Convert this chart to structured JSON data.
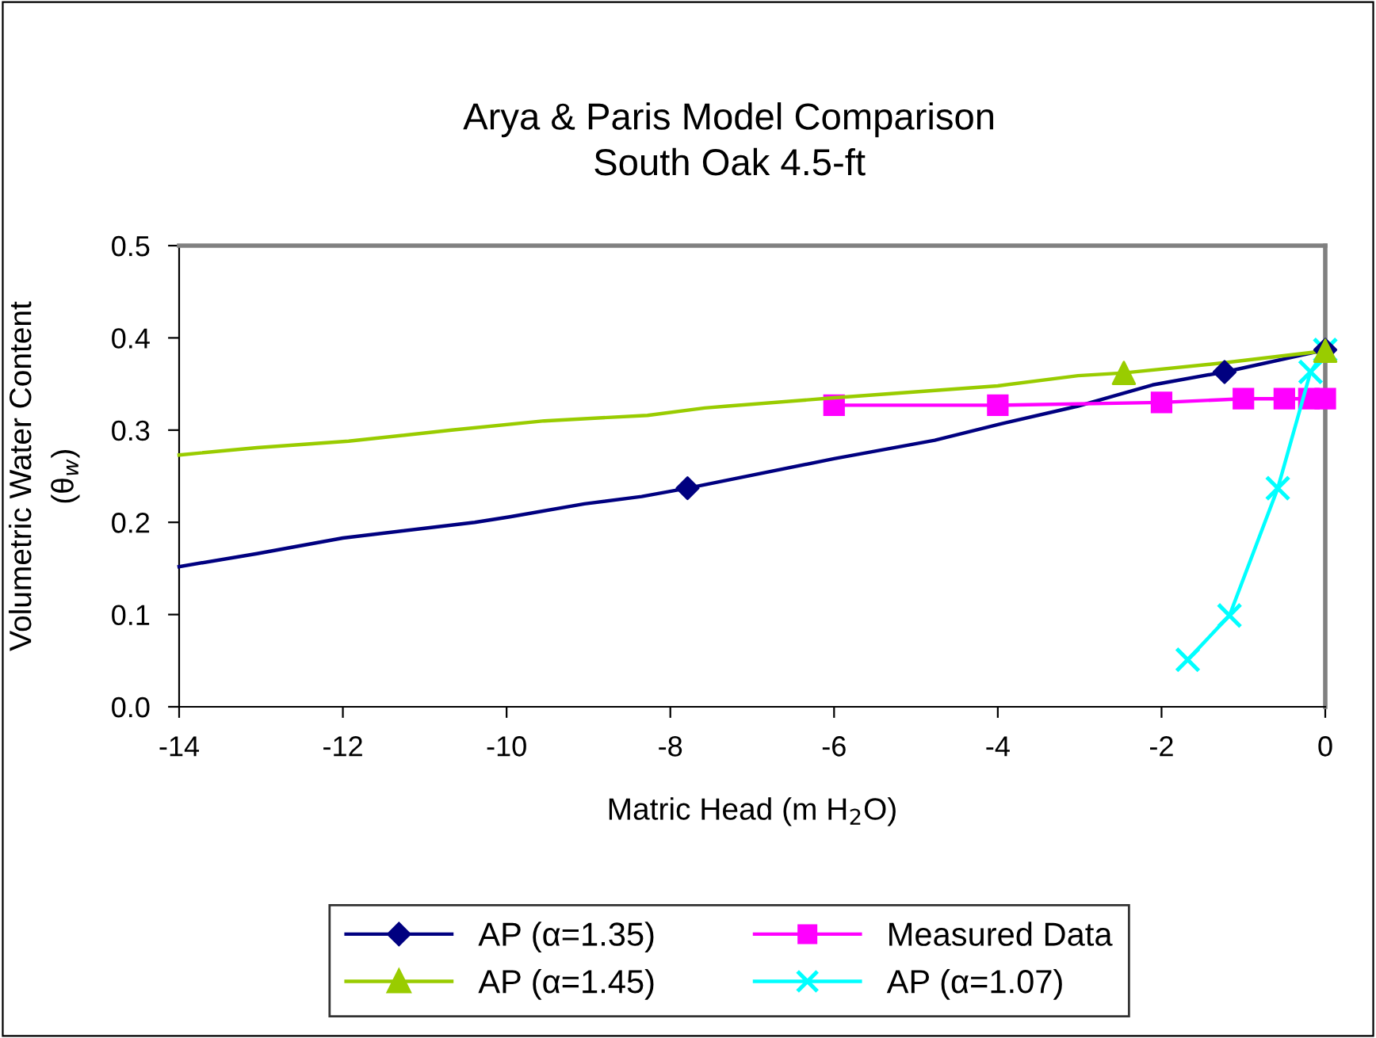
{
  "chart_data": {
    "type": "line",
    "title": "Arya & Paris Model Comparison\nSouth Oak 4.5-ft",
    "xlabel": "Matric Head (m H$_{2}$O)",
    "ylabel": "Volumetric Water Content\n(θ$_{w}$)",
    "xlim": [
      -14,
      0
    ],
    "xticks": [
      {
        "value": -14,
        "label": "-14"
      },
      {
        "value": -12,
        "label": "-12"
      },
      {
        "value": -10,
        "label": "-10"
      },
      {
        "value": -8,
        "label": "-8"
      },
      {
        "value": -6,
        "label": "-6"
      },
      {
        "value": -4,
        "label": "-4"
      },
      {
        "value": -2,
        "label": "-2"
      },
      0
    ],
    "ylim": [
      0,
      0.5
    ],
    "yticks": [
      {
        "value": 0,
        "label": "0.0"
      },
      0.1,
      0.2,
      0.3,
      0.4,
      0.5
    ],
    "grid": false,
    "legend": "bottom",
    "series": [
      {
        "color": "#000080",
        "marker": "none",
        "x": [
          -14,
          -13.05,
          -12,
          -10.39,
          -9.96,
          -9.05,
          -8.35,
          -7.79,
          -6,
          -4.77,
          -4,
          -3.02,
          -2.11,
          -1.23,
          0
        ],
        "values": [
          0.152,
          0.166,
          0.183,
          0.2,
          0.206,
          0.22,
          0.228,
          0.237,
          0.269,
          0.289,
          0.306,
          0.326,
          0.349,
          0.363,
          0.387
        ]
      },
      {
        "type": "scatter",
        "name": "AP (α=1.35)",
        "color": "#000080",
        "marker": "diamond",
        "x": [
          -7.79,
          -1.23,
          0
        ],
        "values": [
          0.237,
          0.363,
          0.387
        ]
      },
      {
        "name": "Measured Data",
        "color": "#ff00ff",
        "marker": "square",
        "x": [
          -6,
          -4,
          -2,
          -1,
          -0.5,
          -0.2,
          0
        ],
        "values": [
          0.327,
          0.327,
          0.33,
          0.334,
          0.334,
          0.334,
          0.334
        ]
      },
      {
        "color": "#99cc00",
        "marker": "none",
        "x": [
          -14,
          -13.05,
          -11.93,
          -10.67,
          -9.54,
          -8.28,
          -7.58,
          -7.3,
          -6,
          -4,
          -3.02,
          -2.46,
          -1.23,
          0
        ],
        "values": [
          0.273,
          0.281,
          0.288,
          0.3,
          0.31,
          0.316,
          0.324,
          0.326,
          0.335,
          0.348,
          0.359,
          0.362,
          0.373,
          0.386
        ]
      },
      {
        "type": "scatter",
        "name": "AP (α=1.45)",
        "color": "#99cc00",
        "marker": "triangle",
        "x": [
          -2.46,
          0
        ],
        "values": [
          0.362,
          0.386
        ]
      },
      {
        "name": "AP (α=1.07)",
        "color": "#00ffff",
        "marker": "cross",
        "x": [
          -1.68,
          -1.17,
          -0.58,
          -0.18,
          0
        ],
        "values": [
          0.051,
          0.099,
          0.237,
          0.363,
          0.387
        ]
      }
    ]
  }
}
